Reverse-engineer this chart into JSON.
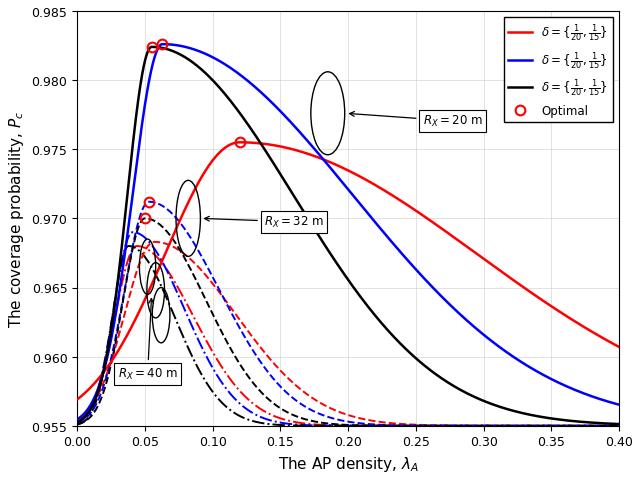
{
  "xlabel": "The AP density, $\\lambda_A$",
  "ylabel": "The coverage probability, $P_c$",
  "xlim": [
    0,
    0.4
  ],
  "ylim": [
    0.955,
    0.985
  ],
  "yticks": [
    0.955,
    0.96,
    0.965,
    0.97,
    0.975,
    0.98,
    0.985
  ],
  "xticks": [
    0,
    0.05,
    0.1,
    0.15,
    0.2,
    0.25,
    0.3,
    0.35,
    0.4
  ],
  "colors": {
    "red": "#FF0000",
    "blue": "#0000FF",
    "black": "#000000"
  },
  "background_color": "#ffffff",
  "solid_curves": {
    "red": {
      "lam_opt": 0.12,
      "peak": 0.9755,
      "wl": 0.055,
      "wr": 0.175
    },
    "blue": {
      "lam_opt": 0.063,
      "peak": 0.9826,
      "wl": 0.022,
      "wr": 0.14
    },
    "black": {
      "lam_opt": 0.055,
      "peak": 0.9824,
      "wl": 0.018,
      "wr": 0.105
    }
  },
  "dashed_curves": {
    "red": {
      "lam_opt": 0.057,
      "peak": 0.9683,
      "wl": 0.022,
      "wr": 0.06
    },
    "blue": {
      "lam_opt": 0.053,
      "peak": 0.9712,
      "wl": 0.018,
      "wr": 0.052
    },
    "black": {
      "lam_opt": 0.05,
      "peak": 0.97,
      "wl": 0.016,
      "wr": 0.045
    }
  },
  "dashdot_curves": {
    "red": {
      "lam_opt": 0.044,
      "peak": 0.968,
      "wl": 0.016,
      "wr": 0.042
    },
    "blue": {
      "lam_opt": 0.041,
      "peak": 0.969,
      "wl": 0.014,
      "wr": 0.038
    },
    "black": {
      "lam_opt": 0.038,
      "peak": 0.968,
      "wl": 0.012,
      "wr": 0.034
    }
  },
  "opt_solid": {
    "red": [
      0.12,
      0.9755
    ],
    "blue": [
      0.063,
      0.9826
    ],
    "black": [
      0.055,
      0.9824
    ]
  },
  "opt_dashed": {
    "blue": [
      0.053,
      0.9712
    ],
    "black": [
      0.05,
      0.97
    ]
  }
}
